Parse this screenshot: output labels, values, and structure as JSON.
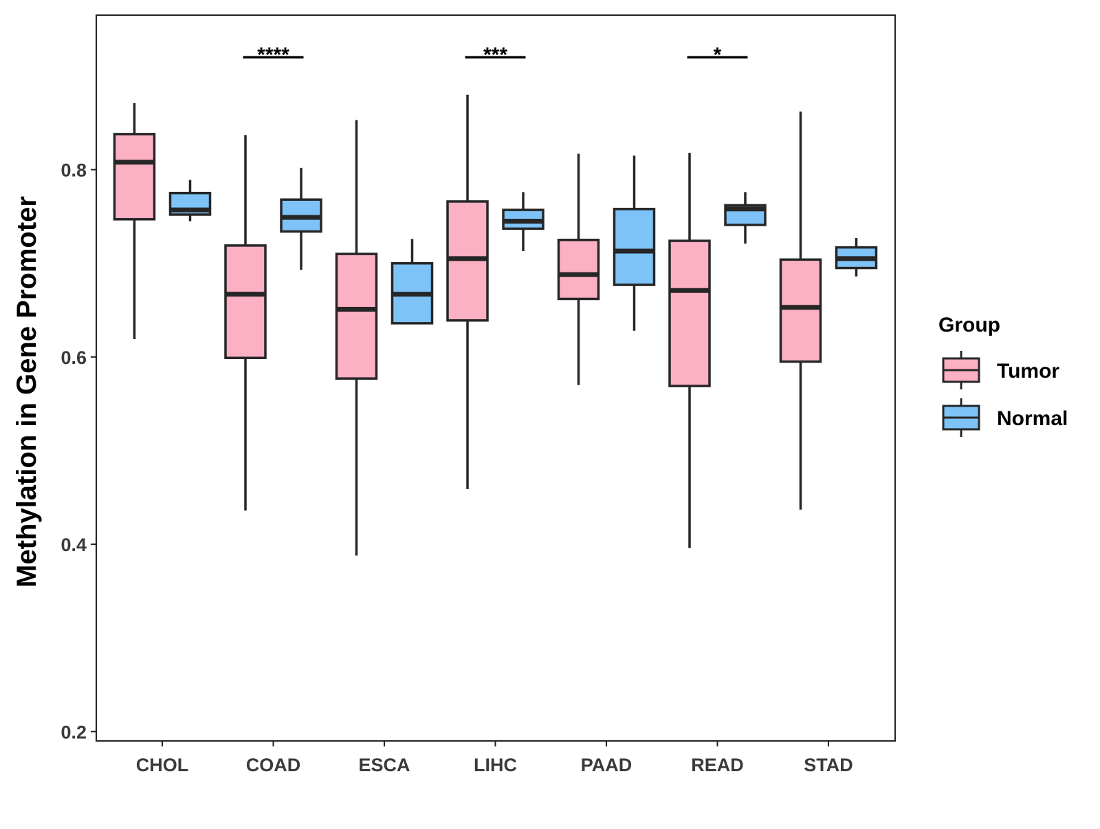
{
  "chart_data": {
    "type": "boxplot",
    "title": "",
    "xlabel": "",
    "ylabel": "Methylation in Gene Promoter",
    "ylim": [
      0.19,
      0.965
    ],
    "yticks": [
      0.2,
      0.4,
      0.6,
      0.8
    ],
    "ytick_labels": [
      "0.2",
      "0.4",
      "0.6",
      "0.8"
    ],
    "grid": false,
    "categories": [
      "CHOL",
      "COAD",
      "ESCA",
      "LIHC",
      "PAAD",
      "READ",
      "STAD"
    ],
    "legend": {
      "title": "Group",
      "position": "right",
      "entries": [
        {
          "name": "Tumor",
          "color": "#FBB0C3"
        },
        {
          "name": "Normal",
          "color": "#7DC3F7"
        }
      ]
    },
    "series": [
      {
        "name": "Tumor",
        "color": "#FBB0C3",
        "boxes": [
          {
            "category": "CHOL",
            "min": 0.619,
            "q1": 0.747,
            "median": 0.808,
            "q3": 0.838,
            "max": 0.871
          },
          {
            "category": "COAD",
            "min": 0.436,
            "q1": 0.599,
            "median": 0.667,
            "q3": 0.719,
            "max": 0.837
          },
          {
            "category": "ESCA",
            "min": 0.388,
            "q1": 0.577,
            "median": 0.651,
            "q3": 0.71,
            "max": 0.853
          },
          {
            "category": "LIHC",
            "min": 0.459,
            "q1": 0.639,
            "median": 0.705,
            "q3": 0.766,
            "max": 0.88
          },
          {
            "category": "PAAD",
            "min": 0.57,
            "q1": 0.662,
            "median": 0.688,
            "q3": 0.725,
            "max": 0.817
          },
          {
            "category": "READ",
            "min": 0.396,
            "q1": 0.569,
            "median": 0.671,
            "q3": 0.724,
            "max": 0.818
          },
          {
            "category": "STAD",
            "min": 0.437,
            "q1": 0.595,
            "median": 0.653,
            "q3": 0.704,
            "max": 0.862
          }
        ]
      },
      {
        "name": "Normal",
        "color": "#7DC3F7",
        "boxes": [
          {
            "category": "CHOL",
            "min": 0.745,
            "q1": 0.752,
            "median": 0.757,
            "q3": 0.775,
            "max": 0.789
          },
          {
            "category": "COAD",
            "min": 0.693,
            "q1": 0.734,
            "median": 0.749,
            "q3": 0.768,
            "max": 0.802
          },
          {
            "category": "ESCA",
            "min": 0.636,
            "q1": 0.636,
            "median": 0.667,
            "q3": 0.7,
            "max": 0.726
          },
          {
            "category": "LIHC",
            "min": 0.713,
            "q1": 0.737,
            "median": 0.745,
            "q3": 0.757,
            "max": 0.776
          },
          {
            "category": "PAAD",
            "min": 0.628,
            "q1": 0.677,
            "median": 0.713,
            "q3": 0.758,
            "max": 0.815
          },
          {
            "category": "READ",
            "min": 0.721,
            "q1": 0.741,
            "median": 0.758,
            "q3": 0.762,
            "max": 0.776
          },
          {
            "category": "STAD",
            "min": 0.686,
            "q1": 0.695,
            "median": 0.705,
            "q3": 0.717,
            "max": 0.727
          }
        ]
      }
    ],
    "annotations": [
      {
        "category": "COAD",
        "label": "****",
        "y": 0.92
      },
      {
        "category": "LIHC",
        "label": "***",
        "y": 0.92
      },
      {
        "category": "READ",
        "label": "*",
        "y": 0.92
      }
    ]
  }
}
